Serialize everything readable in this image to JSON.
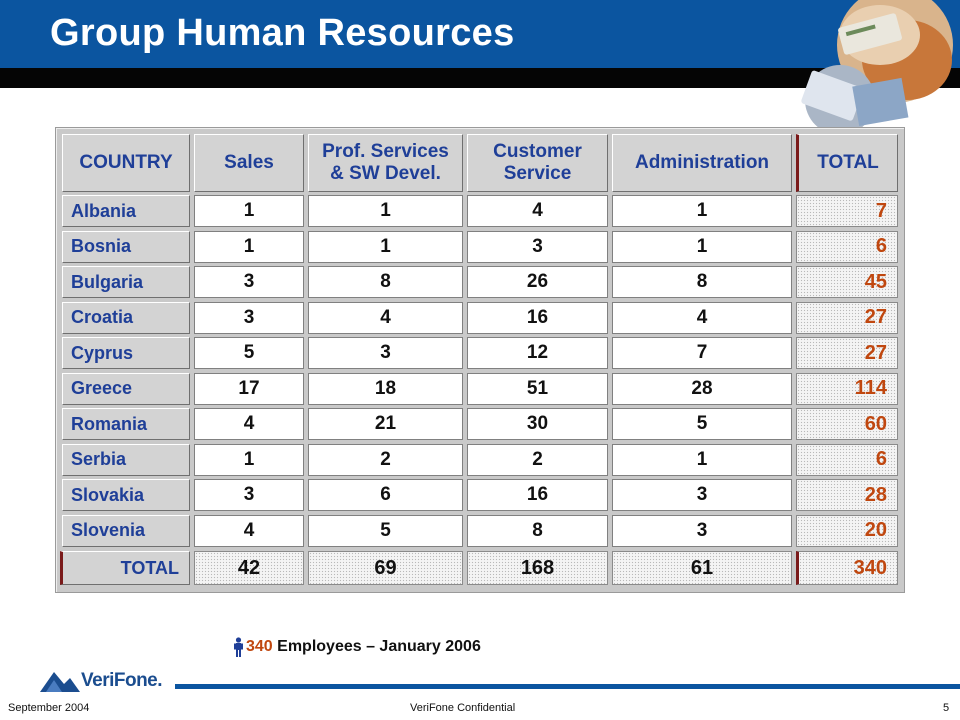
{
  "title": "Group Human Resources",
  "table": {
    "headers": [
      "COUNTRY",
      "Sales",
      "Prof. Services\n& SW Devel.",
      "Customer\nService",
      "Administration",
      "TOTAL"
    ],
    "rows": [
      {
        "country": "Albania",
        "values": [
          "1",
          "1",
          "4",
          "1"
        ],
        "total": "7"
      },
      {
        "country": "Bosnia",
        "values": [
          "1",
          "1",
          "3",
          "1"
        ],
        "total": "6"
      },
      {
        "country": "Bulgaria",
        "values": [
          "3",
          "8",
          "26",
          "8"
        ],
        "total": "45"
      },
      {
        "country": "Croatia",
        "values": [
          "3",
          "4",
          "16",
          "4"
        ],
        "total": "27"
      },
      {
        "country": "Cyprus",
        "values": [
          "5",
          "3",
          "12",
          "7"
        ],
        "total": "27"
      },
      {
        "country": "Greece",
        "values": [
          "17",
          "18",
          "51",
          "28"
        ],
        "total": "114"
      },
      {
        "country": "Romania",
        "values": [
          "4",
          "21",
          "30",
          "5"
        ],
        "total": "60"
      },
      {
        "country": "Serbia",
        "values": [
          "1",
          "2",
          "2",
          "1"
        ],
        "total": "6"
      },
      {
        "country": "Slovakia",
        "values": [
          "3",
          "6",
          "16",
          "3"
        ],
        "total": "28"
      },
      {
        "country": "Slovenia",
        "values": [
          "4",
          "5",
          "8",
          "3"
        ],
        "total": "20"
      }
    ],
    "total_row": {
      "label": "TOTAL",
      "values": [
        "42",
        "69",
        "168",
        "61"
      ],
      "total": "340"
    }
  },
  "summary": {
    "icon": "person-icon",
    "count": "340",
    "text": "Employees – January 2006"
  },
  "logo": {
    "text": "VeriFone."
  },
  "footer": {
    "date": "September 2004",
    "confidential": "VeriFone Confidential",
    "page": "5"
  },
  "colors": {
    "brand_blue": "#0b55a0",
    "header_text": "#1f3f98",
    "total_text": "#c0470f"
  }
}
